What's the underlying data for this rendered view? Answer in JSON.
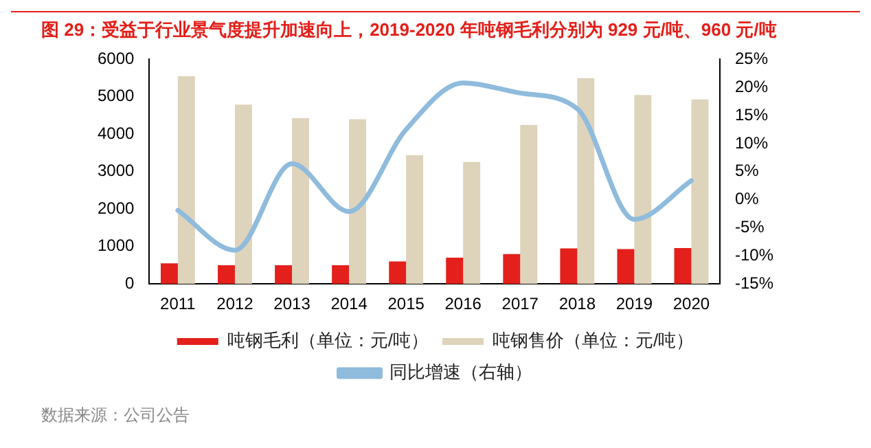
{
  "chart_data": {
    "type": "bar",
    "title": "图 29：受益于行业景气度提升加速向上，2019-2020 年吨钢毛利分别为 929 元/吨、960 元/吨",
    "categories": [
      "2011",
      "2012",
      "2013",
      "2014",
      "2015",
      "2016",
      "2017",
      "2018",
      "2019",
      "2020"
    ],
    "series": [
      {
        "name": "吨钢毛利（单位：元/吨）",
        "color": "#e3201b",
        "values": [
          550,
          500,
          500,
          500,
          600,
          700,
          800,
          950,
          929,
          960
        ]
      },
      {
        "name": "吨钢售价（单位：元/吨）",
        "color": "#ded3bb",
        "values": [
          5550,
          4790,
          4430,
          4400,
          3440,
          3260,
          4250,
          5500,
          5050,
          4930
        ]
      },
      {
        "name": "同比增速（右轴）",
        "type": "line",
        "axis": "y2",
        "color": "#8fbbdc",
        "values": [
          -1.9,
          -9.0,
          6.4,
          -2.1,
          12.5,
          20.8,
          19.0,
          16.2,
          -3.5,
          3.4
        ]
      }
    ],
    "ylim": [
      0,
      6000
    ],
    "yticks": [
      0,
      1000,
      2000,
      3000,
      4000,
      5000,
      6000
    ],
    "y2lim": [
      -15,
      25
    ],
    "y2ticks": [
      {
        "value": -15,
        "label": "-15%"
      },
      {
        "value": -10,
        "label": "-10%"
      },
      {
        "value": -5,
        "label": "-5%"
      },
      {
        "value": 0,
        "label": "0%"
      },
      {
        "value": 5,
        "label": "5%"
      },
      {
        "value": 10,
        "label": "10%"
      },
      {
        "value": 15,
        "label": "15%"
      },
      {
        "value": 20,
        "label": "20%"
      },
      {
        "value": 25,
        "label": "25%"
      }
    ],
    "grid": false,
    "legend": "bottom",
    "marker": "none",
    "annotations": [
      "数据来源：公司公告"
    ]
  }
}
